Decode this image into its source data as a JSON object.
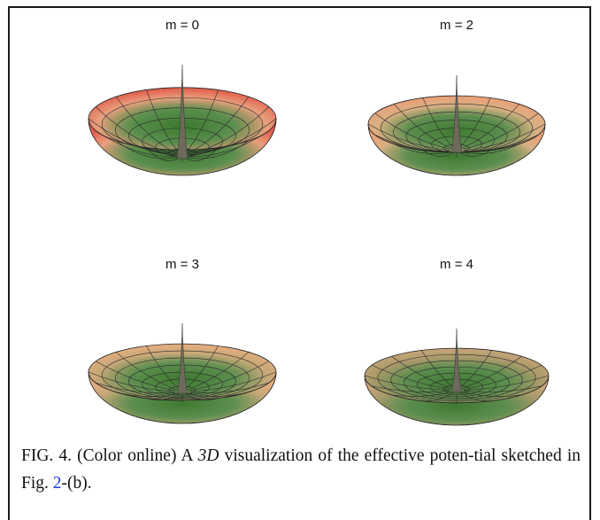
{
  "panels": [
    {
      "label": "m = 0",
      "rim_color": "#e2604e",
      "mid_color": "#e8a07e",
      "center_color": "#3c7a2e"
    },
    {
      "label": "m = 2",
      "rim_color": "#eaa077",
      "mid_color": "#d9b083",
      "center_color": "#3f7a30"
    },
    {
      "label": "m = 3",
      "rim_color": "#e3ad7f",
      "mid_color": "#c6a878",
      "center_color": "#3f7a30"
    },
    {
      "label": "m = 4",
      "rim_color": "#c6a478",
      "mid_color": "#a89a6a",
      "center_color": "#3f7a30"
    }
  ],
  "caption": {
    "prefix": "FIG. 4.   (Color online) A ",
    "math": "3D",
    "middle": " visualization of the effective poten-tial sketched in Fig. ",
    "ref": "2",
    "suffix": "-(b)."
  }
}
